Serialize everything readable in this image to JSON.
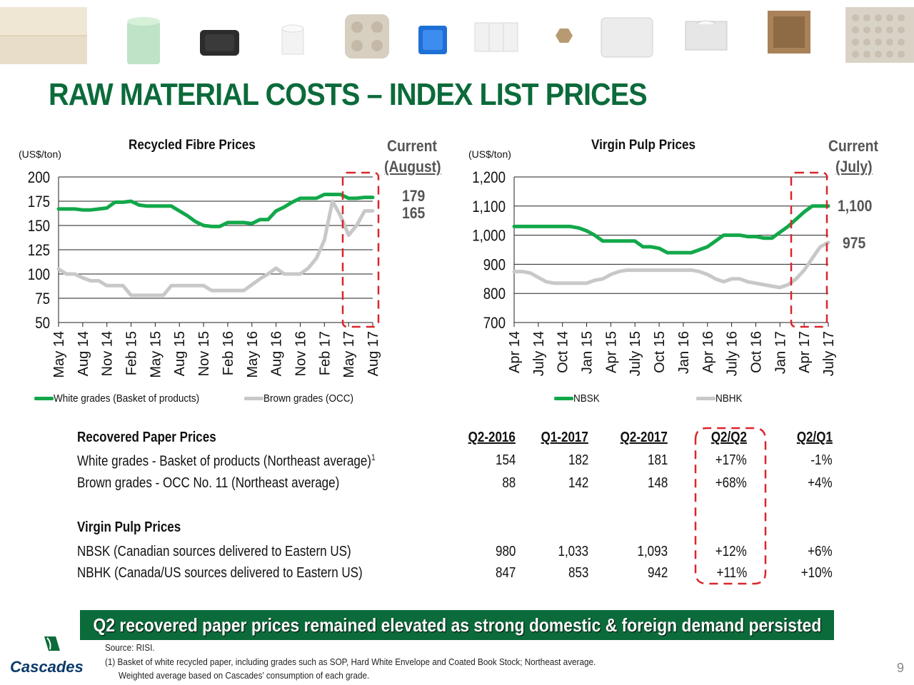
{
  "title": "RAW MATERIAL COSTS – INDEX LIST PRICES",
  "colors": {
    "brand_green": "#0b6b3a",
    "series_green": "#12a84a",
    "series_grey": "#c8c8c8",
    "highlight_red": "#d9262c"
  },
  "left_chart": {
    "title": "Recycled Fibre Prices",
    "unit": "(US$/ton)",
    "current_label": "Current",
    "current_period": "(August)",
    "current_values": [
      "179",
      "165"
    ],
    "legend": [
      "White grades (Basket of products)",
      "Brown grades (OCC)"
    ]
  },
  "right_chart": {
    "title": "Virgin Pulp Prices",
    "unit": "(US$/ton)",
    "current_label": "Current",
    "current_period": "(July)",
    "current_values": [
      "1,100",
      "975"
    ],
    "legend": [
      "NBSK",
      "NBHK"
    ]
  },
  "chart_data": [
    {
      "type": "line",
      "title": "Recycled Fibre Prices",
      "ylabel": "(US$/ton)",
      "ylim": [
        50,
        200
      ],
      "yticks": [
        "50",
        "75",
        "100",
        "125",
        "150",
        "175",
        "200"
      ],
      "ytick_values": [
        50,
        75,
        100,
        125,
        150,
        175,
        200
      ],
      "grid": true,
      "legend_position": "bottom",
      "xlim": [
        0,
        39
      ],
      "x_tick_labels": [
        "May 14",
        "Aug 14",
        "Nov 14",
        "Feb 15",
        "May 15",
        "Aug 15",
        "Nov 15",
        "Feb 16",
        "May 16",
        "Aug 16",
        "Nov 16",
        "Feb 17",
        "May 17",
        "Aug 17"
      ],
      "x_tick_months": [
        0,
        3,
        6,
        9,
        12,
        15,
        18,
        21,
        24,
        27,
        30,
        33,
        36,
        39
      ],
      "series": [
        {
          "name": "White grades (Basket of products)",
          "color": "#12a84a",
          "x": [
            0,
            1,
            2,
            3,
            4,
            5,
            6,
            7,
            8,
            9,
            10,
            11,
            12,
            13,
            14,
            15,
            16,
            17,
            18,
            19,
            20,
            21,
            22,
            23,
            24,
            25,
            26,
            27,
            28,
            29,
            30,
            31,
            32,
            33,
            34,
            35,
            36,
            37,
            38,
            39
          ],
          "values": [
            167,
            167,
            167,
            166,
            166,
            167,
            168,
            174,
            174,
            175,
            171,
            170,
            170,
            170,
            170,
            165,
            160,
            154,
            150,
            149,
            149,
            153,
            153,
            153,
            152,
            156,
            156,
            165,
            169,
            174,
            178,
            178,
            178,
            182,
            182,
            182,
            178,
            178,
            179,
            179
          ]
        },
        {
          "name": "Brown grades (OCC)",
          "color": "#c8c8c8",
          "x": [
            0,
            1,
            2,
            3,
            4,
            5,
            6,
            7,
            8,
            9,
            10,
            11,
            12,
            13,
            14,
            15,
            16,
            17,
            18,
            19,
            20,
            21,
            22,
            23,
            24,
            25,
            26,
            27,
            28,
            29,
            30,
            31,
            32,
            33,
            34,
            35,
            36,
            37,
            38,
            39
          ],
          "values": [
            105,
            100,
            100,
            96,
            93,
            93,
            88,
            88,
            88,
            78,
            78,
            78,
            78,
            78,
            88,
            88,
            88,
            88,
            88,
            83,
            83,
            83,
            83,
            83,
            89,
            95,
            100,
            106,
            100,
            100,
            100,
            106,
            116,
            135,
            175,
            160,
            140,
            150,
            165,
            165
          ]
        }
      ]
    },
    {
      "type": "line",
      "title": "Virgin Pulp Prices",
      "ylabel": "(US$/ton)",
      "ylim": [
        700,
        1200
      ],
      "yticks": [
        "700",
        "800",
        "900",
        "1,000",
        "1,100",
        "1,200"
      ],
      "ytick_values": [
        700,
        800,
        900,
        1000,
        1100,
        1200
      ],
      "grid": true,
      "legend_position": "bottom",
      "xlim": [
        0,
        39
      ],
      "x_tick_labels": [
        "Apr 14",
        "July 14",
        "Oct 14",
        "Jan 15",
        "Apr 15",
        "July 15",
        "Oct 15",
        "Jan 16",
        "Apr 16",
        "July 16",
        "Oct 16",
        "Jan 17",
        "Apr 17",
        "July 17"
      ],
      "x_tick_months": [
        0,
        3,
        6,
        9,
        12,
        15,
        18,
        21,
        24,
        27,
        30,
        33,
        36,
        39
      ],
      "series": [
        {
          "name": "NBSK",
          "color": "#12a84a",
          "x": [
            0,
            1,
            2,
            3,
            4,
            5,
            6,
            7,
            8,
            9,
            10,
            11,
            12,
            13,
            14,
            15,
            16,
            17,
            18,
            19,
            20,
            21,
            22,
            23,
            24,
            25,
            26,
            27,
            28,
            29,
            30,
            31,
            32,
            33,
            34,
            35,
            36,
            37,
            38,
            39
          ],
          "values": [
            1030,
            1030,
            1030,
            1030,
            1030,
            1030,
            1030,
            1030,
            1025,
            1015,
            1000,
            980,
            980,
            980,
            980,
            980,
            960,
            960,
            955,
            940,
            940,
            940,
            940,
            950,
            960,
            980,
            1000,
            1000,
            1000,
            995,
            995,
            990,
            990,
            1010,
            1030,
            1055,
            1080,
            1100,
            1100,
            1100
          ]
        },
        {
          "name": "NBHK",
          "color": "#c8c8c8",
          "x": [
            0,
            1,
            2,
            3,
            4,
            5,
            6,
            7,
            8,
            9,
            10,
            11,
            12,
            13,
            14,
            15,
            16,
            17,
            18,
            19,
            20,
            21,
            22,
            23,
            24,
            25,
            26,
            27,
            28,
            29,
            30,
            31,
            32,
            33,
            34,
            35,
            36,
            37,
            38,
            39
          ],
          "values": [
            875,
            875,
            870,
            855,
            840,
            835,
            835,
            835,
            835,
            835,
            845,
            850,
            865,
            875,
            880,
            880,
            880,
            880,
            880,
            880,
            880,
            880,
            880,
            875,
            865,
            850,
            840,
            850,
            850,
            840,
            835,
            830,
            825,
            820,
            830,
            850,
            880,
            920,
            960,
            975
          ]
        }
      ]
    }
  ],
  "table": {
    "headers": {
      "section": "Recovered Paper Prices",
      "q2_2016": "Q2-2016",
      "q1_2017": "Q1-2017",
      "q2_2017": "Q2-2017",
      "q2q2": "Q2/Q2",
      "q2q1": "Q2/Q1"
    },
    "rows": [
      {
        "label": "White grades - Basket of products (Northeast average)",
        "sup": "1",
        "q2_2016": "154",
        "q1_2017": "182",
        "q2_2017": "181",
        "q2q2": "+17%",
        "q2q1": "-1%"
      },
      {
        "label": "Brown grades - OCC No. 11 (Northeast average)",
        "sup": "",
        "q2_2016": "88",
        "q1_2017": "142",
        "q2_2017": "148",
        "q2q2": "+68%",
        "q2q1": "+4%"
      }
    ],
    "section2": "Virgin Pulp Prices",
    "rows2": [
      {
        "label": "NBSK (Canadian sources delivered to Eastern US)",
        "q2_2016": "980",
        "q1_2017": "1,033",
        "q2_2017": "1,093",
        "q2q2": "+12%",
        "q2q1": "+6%"
      },
      {
        "label": "NBHK (Canada/US sources delivered to Eastern US)",
        "q2_2016": "847",
        "q1_2017": "853",
        "q2_2017": "942",
        "q2q2": "+11%",
        "q2q1": "+10%"
      }
    ]
  },
  "banner": "Q2 recovered paper prices remained elevated as strong domestic & foreign demand persisted",
  "footnotes": {
    "source": "Source: RISI.",
    "note1": "(1) Basket of white recycled paper, including grades such as SOP, Hard White Envelope and Coated Book Stock; Northeast average.",
    "note2": "Weighted average based on Cascades’ consumption of each grade."
  },
  "logo_text": "Cascades",
  "page_number": "9"
}
